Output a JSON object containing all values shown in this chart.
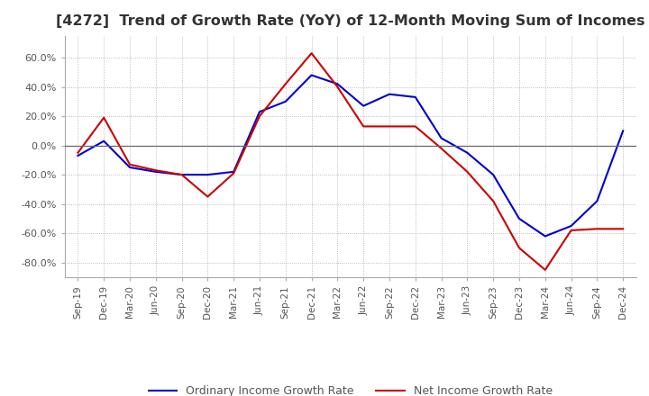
{
  "title": "[4272]  Trend of Growth Rate (YoY) of 12-Month Moving Sum of Incomes",
  "title_fontsize": 11.5,
  "title_color": "#333333",
  "ylim": [
    -90,
    75
  ],
  "yticks": [
    -80,
    -60,
    -40,
    -20,
    0,
    20,
    40,
    60
  ],
  "background_color": "#ffffff",
  "grid_color": "#aaaaaa",
  "legend_labels": [
    "Ordinary Income Growth Rate",
    "Net Income Growth Rate"
  ],
  "legend_colors": [
    "#0000cc",
    "#cc0000"
  ],
  "x_labels": [
    "Sep-19",
    "Dec-19",
    "Mar-20",
    "Jun-20",
    "Sep-20",
    "Dec-20",
    "Mar-21",
    "Jun-21",
    "Sep-21",
    "Dec-21",
    "Mar-22",
    "Jun-22",
    "Sep-22",
    "Dec-22",
    "Mar-23",
    "Jun-23",
    "Sep-23",
    "Dec-23",
    "Mar-24",
    "Jun-24",
    "Sep-24",
    "Dec-24"
  ],
  "ordinary_income": [
    -7,
    3,
    -15,
    -18,
    -20,
    -20,
    -18,
    23,
    30,
    48,
    42,
    27,
    35,
    33,
    5,
    -5,
    -20,
    -50,
    -62,
    -55,
    -38,
    10
  ],
  "net_income": [
    -5,
    19,
    -13,
    -17,
    -20,
    -35,
    -19,
    20,
    42,
    63,
    40,
    13,
    13,
    13,
    -2,
    -18,
    -38,
    -70,
    -85,
    -58,
    -57,
    -57
  ]
}
